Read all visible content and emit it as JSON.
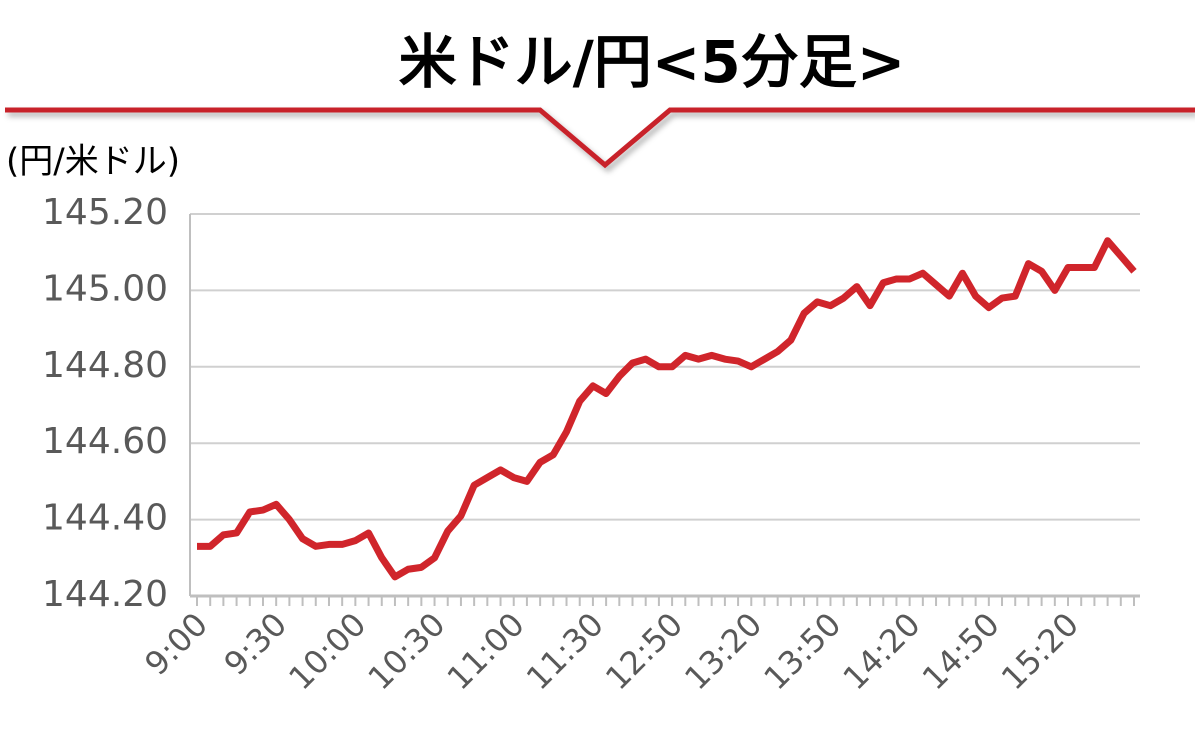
{
  "chart_data": {
    "type": "line",
    "title": "米ドル/円<5分足>",
    "y_label": "(円/米ドル)",
    "color": "#d0252b",
    "grid": true,
    "ylim": [
      144.2,
      145.2
    ],
    "yticks": [
      {
        "value": 144.2,
        "label": "144.20"
      },
      {
        "value": 144.4,
        "label": "144.40"
      },
      {
        "value": 144.6,
        "label": "144.60"
      },
      {
        "value": 144.8,
        "label": "144.80"
      },
      {
        "value": 145.0,
        "label": "145.00"
      },
      {
        "value": 145.2,
        "label": "145.20"
      }
    ],
    "categories": [
      "9:00",
      null,
      null,
      null,
      null,
      null,
      "9:30",
      null,
      null,
      null,
      null,
      null,
      "10:00",
      null,
      null,
      null,
      null,
      null,
      "10:30",
      null,
      null,
      null,
      null,
      null,
      "11:00",
      null,
      null,
      null,
      null,
      null,
      "11:30",
      null,
      null,
      null,
      null,
      null,
      "12:50",
      null,
      null,
      null,
      null,
      null,
      "13:20",
      null,
      null,
      null,
      null,
      null,
      "13:50",
      null,
      null,
      null,
      null,
      null,
      "14:20",
      null,
      null,
      null,
      null,
      null,
      "14:50",
      null,
      null,
      null,
      null,
      null,
      "15:20",
      null,
      null,
      null,
      null,
      null
    ],
    "values": [
      144.33,
      144.33,
      144.36,
      144.365,
      144.42,
      144.425,
      144.44,
      144.4,
      144.35,
      144.33,
      144.335,
      144.335,
      144.345,
      144.365,
      144.3,
      144.25,
      144.27,
      144.275,
      144.3,
      144.37,
      144.41,
      144.49,
      144.51,
      144.53,
      144.51,
      144.5,
      144.55,
      144.57,
      144.63,
      144.71,
      144.75,
      144.73,
      144.775,
      144.81,
      144.82,
      144.8,
      144.8,
      144.83,
      144.82,
      144.83,
      144.82,
      144.815,
      144.8,
      144.82,
      144.84,
      144.87,
      144.94,
      144.97,
      144.96,
      144.98,
      145.01,
      144.96,
      145.02,
      145.03,
      145.03,
      145.045,
      145.015,
      144.985,
      145.045,
      144.985,
      144.955,
      144.98,
      144.985,
      145.07,
      145.05,
      145.0,
      145.06,
      145.06,
      145.06,
      145.13,
      145.09,
      145.05
    ]
  }
}
